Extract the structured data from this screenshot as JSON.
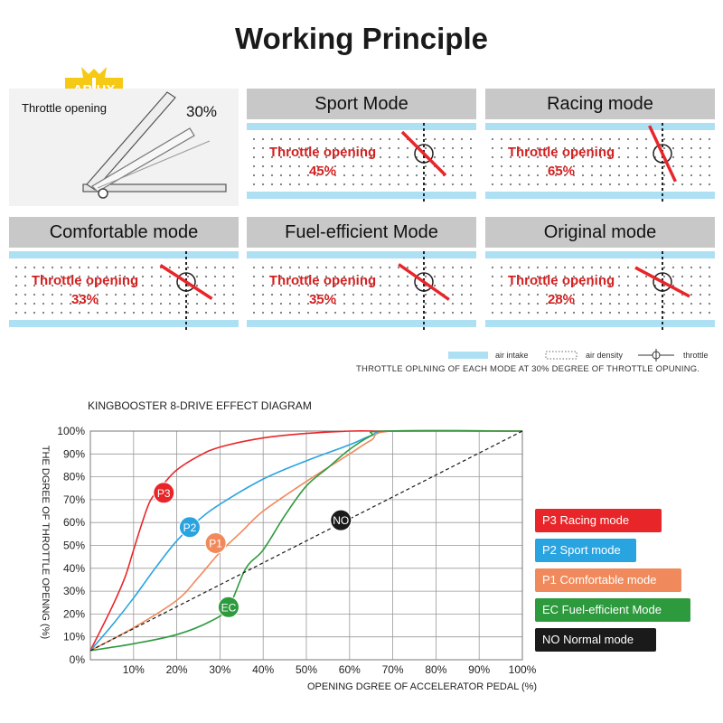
{
  "title": "Working Principle",
  "logo_text": "AB HX",
  "throttle_panel": {
    "label": "Throttle opening",
    "percent": "30%"
  },
  "panels": [
    {
      "mode": "Sport Mode",
      "label": "Throttle opening",
      "value": "45%",
      "angle": 45
    },
    {
      "mode": "Racing mode",
      "label": "Throttle opening",
      "value": "65%",
      "angle": 65
    },
    {
      "mode": "Comfortable mode",
      "label": "Throttle opening",
      "value": "33%",
      "angle": 33
    },
    {
      "mode": "Fuel-efficient Mode",
      "label": "Throttle opening",
      "value": "35%",
      "angle": 35
    },
    {
      "mode": "Original mode",
      "label": "Throttle opening",
      "value": "28%",
      "angle": 28
    }
  ],
  "legend": {
    "air_intake": "air intake",
    "air_density": "air density",
    "throttle": "throttle"
  },
  "note": "THROTTLE OPLNING OF EACH MODE AT 30% DEGREE OF THROTTLE OPUNING.",
  "colors": {
    "red": "#e8262a",
    "blue": "#2aa4e0",
    "orange": "#f08a5c",
    "green": "#2e9a3e",
    "black": "#1a1a1a",
    "panel_gray": "#c8c8c8",
    "air": "#aee0f4"
  },
  "chart_data": {
    "type": "line",
    "title": "KINGBOOSTER 8-DRIVE EFFECT DIAGRAM",
    "xlabel": "OPENING DGREE OF ACCELERATOR PEDAL (%)",
    "ylabel": "THE DGREE OF THROTTLE OPENNG (%)",
    "xlim": [
      0,
      100
    ],
    "ylim": [
      0,
      100
    ],
    "x_ticks": [
      "10%",
      "20%",
      "30%",
      "40%",
      "50%",
      "60%",
      "70%",
      "80%",
      "90%",
      "100%"
    ],
    "y_ticks": [
      "0%",
      "10%",
      "20%",
      "30%",
      "40%",
      "50%",
      "60%",
      "70%",
      "80%",
      "90%",
      "100%"
    ],
    "grid": true,
    "legend_position": "right",
    "series": [
      {
        "name": "P3 Racing mode",
        "marker": "P3",
        "color": "#e8262a",
        "style": "solid",
        "marker_point": [
          17,
          73
        ],
        "points": [
          [
            0,
            4
          ],
          [
            5,
            23
          ],
          [
            8,
            36
          ],
          [
            10,
            48
          ],
          [
            12,
            60
          ],
          [
            14,
            70
          ],
          [
            17,
            77
          ],
          [
            20,
            83
          ],
          [
            25,
            89
          ],
          [
            30,
            93
          ],
          [
            40,
            97
          ],
          [
            50,
            99
          ],
          [
            60,
            100
          ],
          [
            70,
            100
          ],
          [
            100,
            100
          ]
        ]
      },
      {
        "name": "P2 Sport mode",
        "marker": "P2",
        "color": "#2aa4e0",
        "style": "solid",
        "marker_point": [
          23,
          58
        ],
        "points": [
          [
            0,
            4
          ],
          [
            5,
            15
          ],
          [
            10,
            27
          ],
          [
            15,
            40
          ],
          [
            20,
            52
          ],
          [
            25,
            61
          ],
          [
            30,
            68
          ],
          [
            40,
            79
          ],
          [
            50,
            87
          ],
          [
            60,
            94
          ],
          [
            65,
            98
          ],
          [
            70,
            100
          ],
          [
            100,
            100
          ]
        ]
      },
      {
        "name": "P1 Comfortable mode",
        "marker": "P1",
        "color": "#f08a5c",
        "style": "solid",
        "marker_point": [
          29,
          51
        ],
        "points": [
          [
            0,
            4
          ],
          [
            10,
            14
          ],
          [
            20,
            26
          ],
          [
            25,
            36
          ],
          [
            30,
            47
          ],
          [
            35,
            56
          ],
          [
            40,
            65
          ],
          [
            50,
            78
          ],
          [
            60,
            90
          ],
          [
            65,
            96
          ],
          [
            70,
            100
          ],
          [
            100,
            100
          ]
        ]
      },
      {
        "name": "EC Fuel-efficient Mode",
        "marker": "EC",
        "color": "#2e9a3e",
        "style": "solid",
        "marker_point": [
          32,
          23
        ],
        "points": [
          [
            0,
            4
          ],
          [
            10,
            7
          ],
          [
            20,
            11
          ],
          [
            28,
            17
          ],
          [
            32,
            23
          ],
          [
            36,
            40
          ],
          [
            40,
            48
          ],
          [
            45,
            63
          ],
          [
            50,
            76
          ],
          [
            55,
            84
          ],
          [
            60,
            92
          ],
          [
            65,
            98
          ],
          [
            68,
            100
          ],
          [
            100,
            100
          ]
        ]
      },
      {
        "name": "NO Normal mode",
        "marker": "NO",
        "color": "#1a1a1a",
        "style": "dashed",
        "marker_point": [
          58,
          61
        ],
        "points": [
          [
            0,
            4
          ],
          [
            100,
            100
          ]
        ]
      }
    ]
  }
}
